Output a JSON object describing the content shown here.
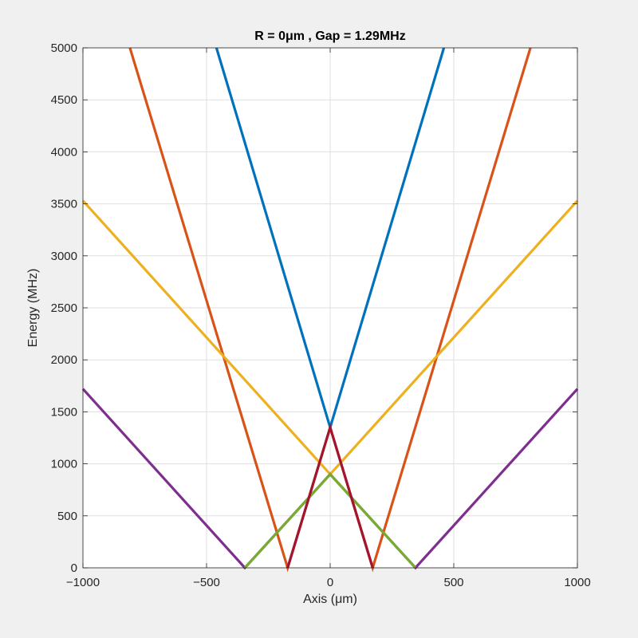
{
  "chart_data": {
    "type": "line",
    "title": "R =    0μm , Gap = 1.29MHz",
    "xlabel": "Axis (μm)",
    "ylabel": "Energy (MHz)",
    "xlim": [
      -1000,
      1000
    ],
    "ylim": [
      0,
      5000
    ],
    "xticks": [
      -1000,
      -500,
      0,
      500,
      1000
    ],
    "xtick_labels": [
      "−1000",
      "−500",
      "0",
      "500",
      "1000"
    ],
    "yticks": [
      0,
      500,
      1000,
      1500,
      2000,
      2500,
      3000,
      3500,
      4000,
      4500,
      5000
    ],
    "ytick_labels": [
      "0",
      "500",
      "1000",
      "1500",
      "2000",
      "2500",
      "3000",
      "3500",
      "4000",
      "4500",
      "5000"
    ],
    "grid": true,
    "series": [
      {
        "color": "#0072BD",
        "x": [
          -460,
          0,
          460
        ],
        "y": [
          5000,
          1350,
          5000
        ]
      },
      {
        "color": "#D95319",
        "x": [
          -810,
          -172,
          0,
          172,
          810
        ],
        "y": [
          5000,
          0,
          1350,
          0,
          5000
        ]
      },
      {
        "color": "#EDB120",
        "x": [
          -1000,
          0,
          1000
        ],
        "y": [
          3530,
          900,
          3530
        ]
      },
      {
        "color": "#7E2F8E",
        "x": [
          -1000,
          -345,
          0,
          345,
          1000
        ],
        "y": [
          1720,
          0,
          900,
          0,
          1720
        ]
      },
      {
        "color": "#77AC30",
        "x": [
          -345,
          0,
          345
        ],
        "y": [
          0,
          900,
          0
        ]
      },
      {
        "color": "#A2142F",
        "x": [
          -172,
          0,
          172
        ],
        "y": [
          0,
          1350,
          0
        ]
      }
    ]
  }
}
